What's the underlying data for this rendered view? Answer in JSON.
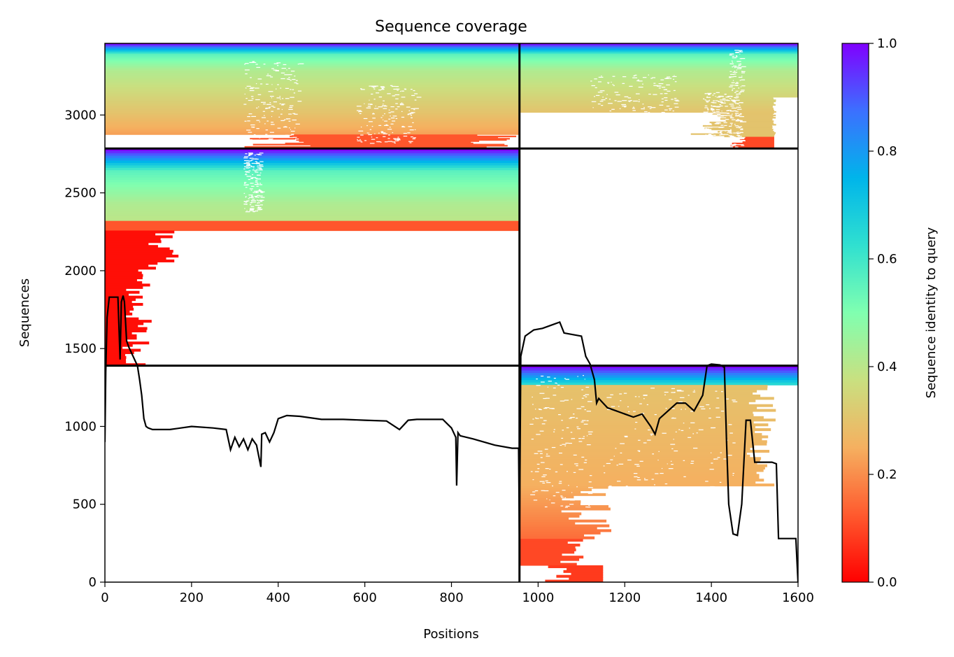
{
  "chart_data": {
    "type": "heatmap",
    "title": "Sequence coverage",
    "xlabel": "Positions",
    "ylabel": "Sequences",
    "xlim": [
      0,
      1600
    ],
    "ylim": [
      0,
      3460
    ],
    "xticks": [
      0,
      200,
      400,
      600,
      800,
      1000,
      1200,
      1400,
      1600
    ],
    "yticks": [
      0,
      500,
      1000,
      1500,
      2000,
      2500,
      3000
    ],
    "colorbar": {
      "label": "Sequence identity to query",
      "range": [
        0,
        1
      ],
      "ticks": [
        "0.0",
        "0.2",
        "0.4",
        "0.6",
        "0.8",
        "1.0"
      ],
      "colormap": "rainbow"
    },
    "grid": false,
    "chain_boundary_x": 957,
    "block_boundaries_y": [
      1390,
      2785
    ],
    "blocks": [
      {
        "name": "top-left",
        "x": [
          0,
          957
        ],
        "y": [
          2785,
          3460
        ],
        "identity_top": 1.0,
        "identity_bottom": 0.1
      },
      {
        "name": "top-right",
        "x": [
          957,
          1600
        ],
        "y": [
          2785,
          3460
        ],
        "identity_top": 1.0,
        "identity_bottom": 0.1
      },
      {
        "name": "middle-left",
        "x": [
          0,
          957
        ],
        "y": [
          1390,
          2785
        ],
        "identity_top": 1.0,
        "identity_bottom": 0.0
      },
      {
        "name": "bottom-right",
        "x": [
          957,
          1600
        ],
        "y": [
          0,
          1390
        ],
        "identity_top": 1.0,
        "identity_bottom": 0.1
      }
    ],
    "coverage_line": {
      "x": [
        0,
        2,
        5,
        10,
        20,
        30,
        35,
        38,
        42,
        45,
        50,
        55,
        60,
        65,
        70,
        75,
        80,
        85,
        90,
        95,
        100,
        110,
        150,
        200,
        250,
        280,
        290,
        300,
        310,
        320,
        330,
        340,
        350,
        360,
        362,
        370,
        380,
        390,
        400,
        420,
        450,
        500,
        550,
        600,
        650,
        680,
        700,
        720,
        780,
        800,
        810,
        812,
        815,
        820,
        850,
        900,
        940,
        955,
        957,
        960,
        970,
        990,
        1010,
        1030,
        1050,
        1060,
        1080,
        1100,
        1110,
        1120,
        1130,
        1135,
        1140,
        1150,
        1160,
        1180,
        1200,
        1220,
        1240,
        1260,
        1270,
        1280,
        1300,
        1320,
        1340,
        1360,
        1380,
        1390,
        1400,
        1420,
        1430,
        1435,
        1440,
        1450,
        1460,
        1470,
        1480,
        1490,
        1500,
        1540,
        1550,
        1555,
        1595,
        1600
      ],
      "y": [
        900,
        1350,
        1700,
        1830,
        1830,
        1830,
        1430,
        1800,
        1840,
        1800,
        1550,
        1510,
        1480,
        1450,
        1420,
        1390,
        1300,
        1200,
        1050,
        1000,
        990,
        980,
        980,
        1000,
        990,
        980,
        850,
        930,
        870,
        920,
        850,
        920,
        880,
        740,
        950,
        960,
        900,
        960,
        1050,
        1070,
        1065,
        1045,
        1045,
        1040,
        1035,
        980,
        1040,
        1045,
        1045,
        990,
        930,
        620,
        960,
        940,
        920,
        880,
        860,
        860,
        250,
        1450,
        1580,
        1620,
        1630,
        1650,
        1670,
        1600,
        1590,
        1580,
        1450,
        1400,
        1300,
        1150,
        1180,
        1150,
        1120,
        1100,
        1080,
        1060,
        1080,
        1000,
        950,
        1050,
        1100,
        1150,
        1150,
        1100,
        1200,
        1390,
        1400,
        1395,
        1380,
        900,
        500,
        310,
        300,
        500,
        1040,
        1040,
        770,
        770,
        760,
        280,
        280,
        0
      ]
    }
  }
}
